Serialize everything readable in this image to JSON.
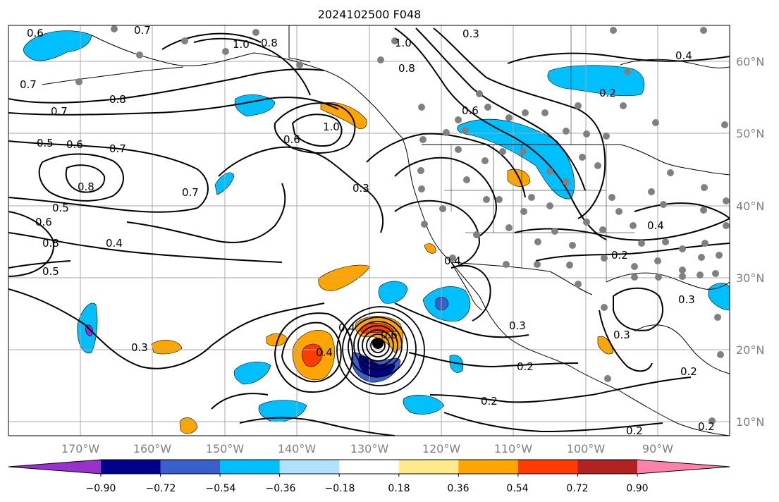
{
  "title": "2024102500 F048",
  "map": {
    "lon_range": [
      -180,
      -80
    ],
    "lat_range": [
      8,
      65
    ],
    "lon_ticks": [
      "170°W",
      "160°W",
      "150°W",
      "140°W",
      "130°W",
      "120°W",
      "110°W",
      "100°W",
      "90°W"
    ],
    "lat_ticks": [
      "60°N",
      "50°N",
      "40°N",
      "30°N",
      "20°N",
      "10°N"
    ],
    "contour_labels": [
      "0.6",
      "0.7",
      "1.0",
      "0.8",
      "0.3",
      "1.0",
      "0.8",
      "0.4",
      "0.7",
      "0.8",
      "0.7",
      "0.2",
      "0.6",
      "1.0",
      "0.6",
      "0.5",
      "0.6",
      "0.7",
      "0.8",
      "0.5",
      "0.7",
      "0.3",
      "0.4",
      "0.6",
      "0.8",
      "0.5",
      "0.4",
      "0.3",
      "0.4",
      "0.4",
      "0.6",
      "0.3",
      "0.2",
      "0.2",
      "0.3",
      "0.3",
      "0.2",
      "0.2",
      "0.2",
      "0.4",
      "0.2"
    ],
    "grid": true
  },
  "colorbar": {
    "ticks": [
      "−0.90",
      "−0.72",
      "−0.54",
      "−0.36",
      "−0.18",
      "0.18",
      "0.36",
      "0.54",
      "0.72",
      "0.90"
    ],
    "colors": [
      "#9932cc",
      "#00008b",
      "#3a5fcd",
      "#00bfff",
      "#b0e2ff",
      "#ffffff",
      "#ffea8a",
      "#ffa500",
      "#ff3c00",
      "#b22222",
      "#ff82ab"
    ]
  }
}
